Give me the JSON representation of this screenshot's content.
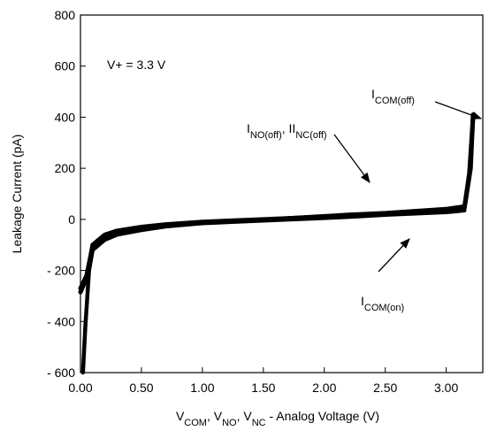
{
  "chart_data": {
    "type": "line",
    "title": "",
    "xlabel": {
      "parts": [
        {
          "t": "V"
        },
        {
          "t": "COM",
          "sub": true
        },
        {
          "t": ", V"
        },
        {
          "t": "NO",
          "sub": true
        },
        {
          "t": ", V"
        },
        {
          "t": "NC",
          "sub": true
        },
        {
          "t": " - Analog Voltage (V)"
        }
      ]
    },
    "ylabel": "Leakage Current  (pA)",
    "xlim": [
      0,
      3.3
    ],
    "ylim": [
      -600,
      800
    ],
    "xticks": [
      {
        "v": 0,
        "label": "0.00"
      },
      {
        "v": 0.5,
        "label": "0.50"
      },
      {
        "v": 1.0,
        "label": "1.00"
      },
      {
        "v": 1.5,
        "label": "1.50"
      },
      {
        "v": 2.0,
        "label": "2.00"
      },
      {
        "v": 2.5,
        "label": "2.50"
      },
      {
        "v": 3.0,
        "label": "3.00"
      }
    ],
    "yticks": [
      {
        "v": 800,
        "label": "800"
      },
      {
        "v": 600,
        "label": "600"
      },
      {
        "v": 400,
        "label": "400"
      },
      {
        "v": 200,
        "label": "200"
      },
      {
        "v": 0,
        "label": "0"
      },
      {
        "v": -200,
        "label": "- 200"
      },
      {
        "v": -400,
        "label": "- 400"
      },
      {
        "v": -600,
        "label": "- 600"
      }
    ],
    "grid": false,
    "series": [
      {
        "name": "I_NO(off), I_NC(off)",
        "x": [
          0.0,
          0.05,
          0.1,
          0.2,
          0.3,
          0.5,
          0.7,
          1.0,
          1.5,
          2.0,
          2.2,
          2.5,
          3.0,
          3.15,
          3.2,
          3.22
        ],
        "y": [
          -285,
          -230,
          -100,
          -60,
          -45,
          -30,
          -20,
          -10,
          0,
          10,
          15,
          20,
          35,
          45,
          200,
          410
        ]
      },
      {
        "name": "I_COM(off)",
        "x": [
          0.0,
          0.05,
          0.1,
          0.2,
          0.3,
          0.5,
          0.7,
          1.0,
          1.5,
          2.0,
          2.2,
          2.5,
          3.0,
          3.15,
          3.19,
          3.22
        ],
        "y": [
          -270,
          -220,
          -105,
          -70,
          -55,
          -38,
          -25,
          -12,
          -2,
          12,
          18,
          24,
          40,
          50,
          180,
          400
        ]
      },
      {
        "name": "I_COM(on)",
        "x": [
          0.02,
          0.04,
          0.07,
          0.1,
          0.2,
          0.3,
          0.5,
          0.7,
          1.0,
          1.5,
          2.0,
          2.3,
          2.5,
          3.0,
          3.15
        ],
        "y": [
          -600,
          -420,
          -200,
          -120,
          -80,
          -60,
          -42,
          -28,
          -15,
          -5,
          5,
          12,
          18,
          28,
          35
        ]
      }
    ],
    "annotations": {
      "vplus": "V+ = 3.3 V",
      "ino_inc": {
        "parts": [
          {
            "t": "I"
          },
          {
            "t": "NO(off)",
            "sub": true
          },
          {
            "t": ", II"
          },
          {
            "t": "NC(off)",
            "sub": true
          }
        ]
      },
      "icom_off": {
        "parts": [
          {
            "t": "I"
          },
          {
            "t": "COM(off)",
            "sub": true
          }
        ]
      },
      "icom_on": {
        "parts": [
          {
            "t": "I"
          },
          {
            "t": "COM(on)",
            "sub": true
          }
        ]
      }
    }
  }
}
